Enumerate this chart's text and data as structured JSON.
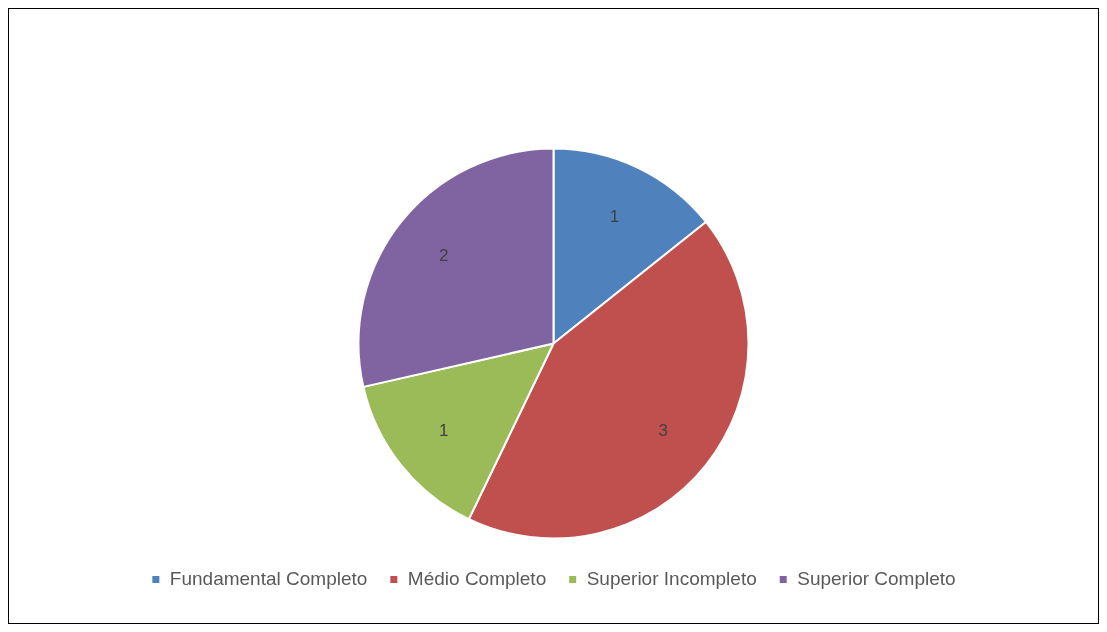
{
  "chart_data": {
    "type": "pie",
    "categories": [
      "Fundamental Completo",
      "Médio Completo",
      "Superior Incompleto",
      "Superior Completo"
    ],
    "values": [
      1,
      3,
      1,
      2
    ],
    "colors": [
      "#4f81bd",
      "#c0504d",
      "#9bbb59",
      "#8064a2"
    ],
    "data_labels": true,
    "legend": "bottom"
  }
}
